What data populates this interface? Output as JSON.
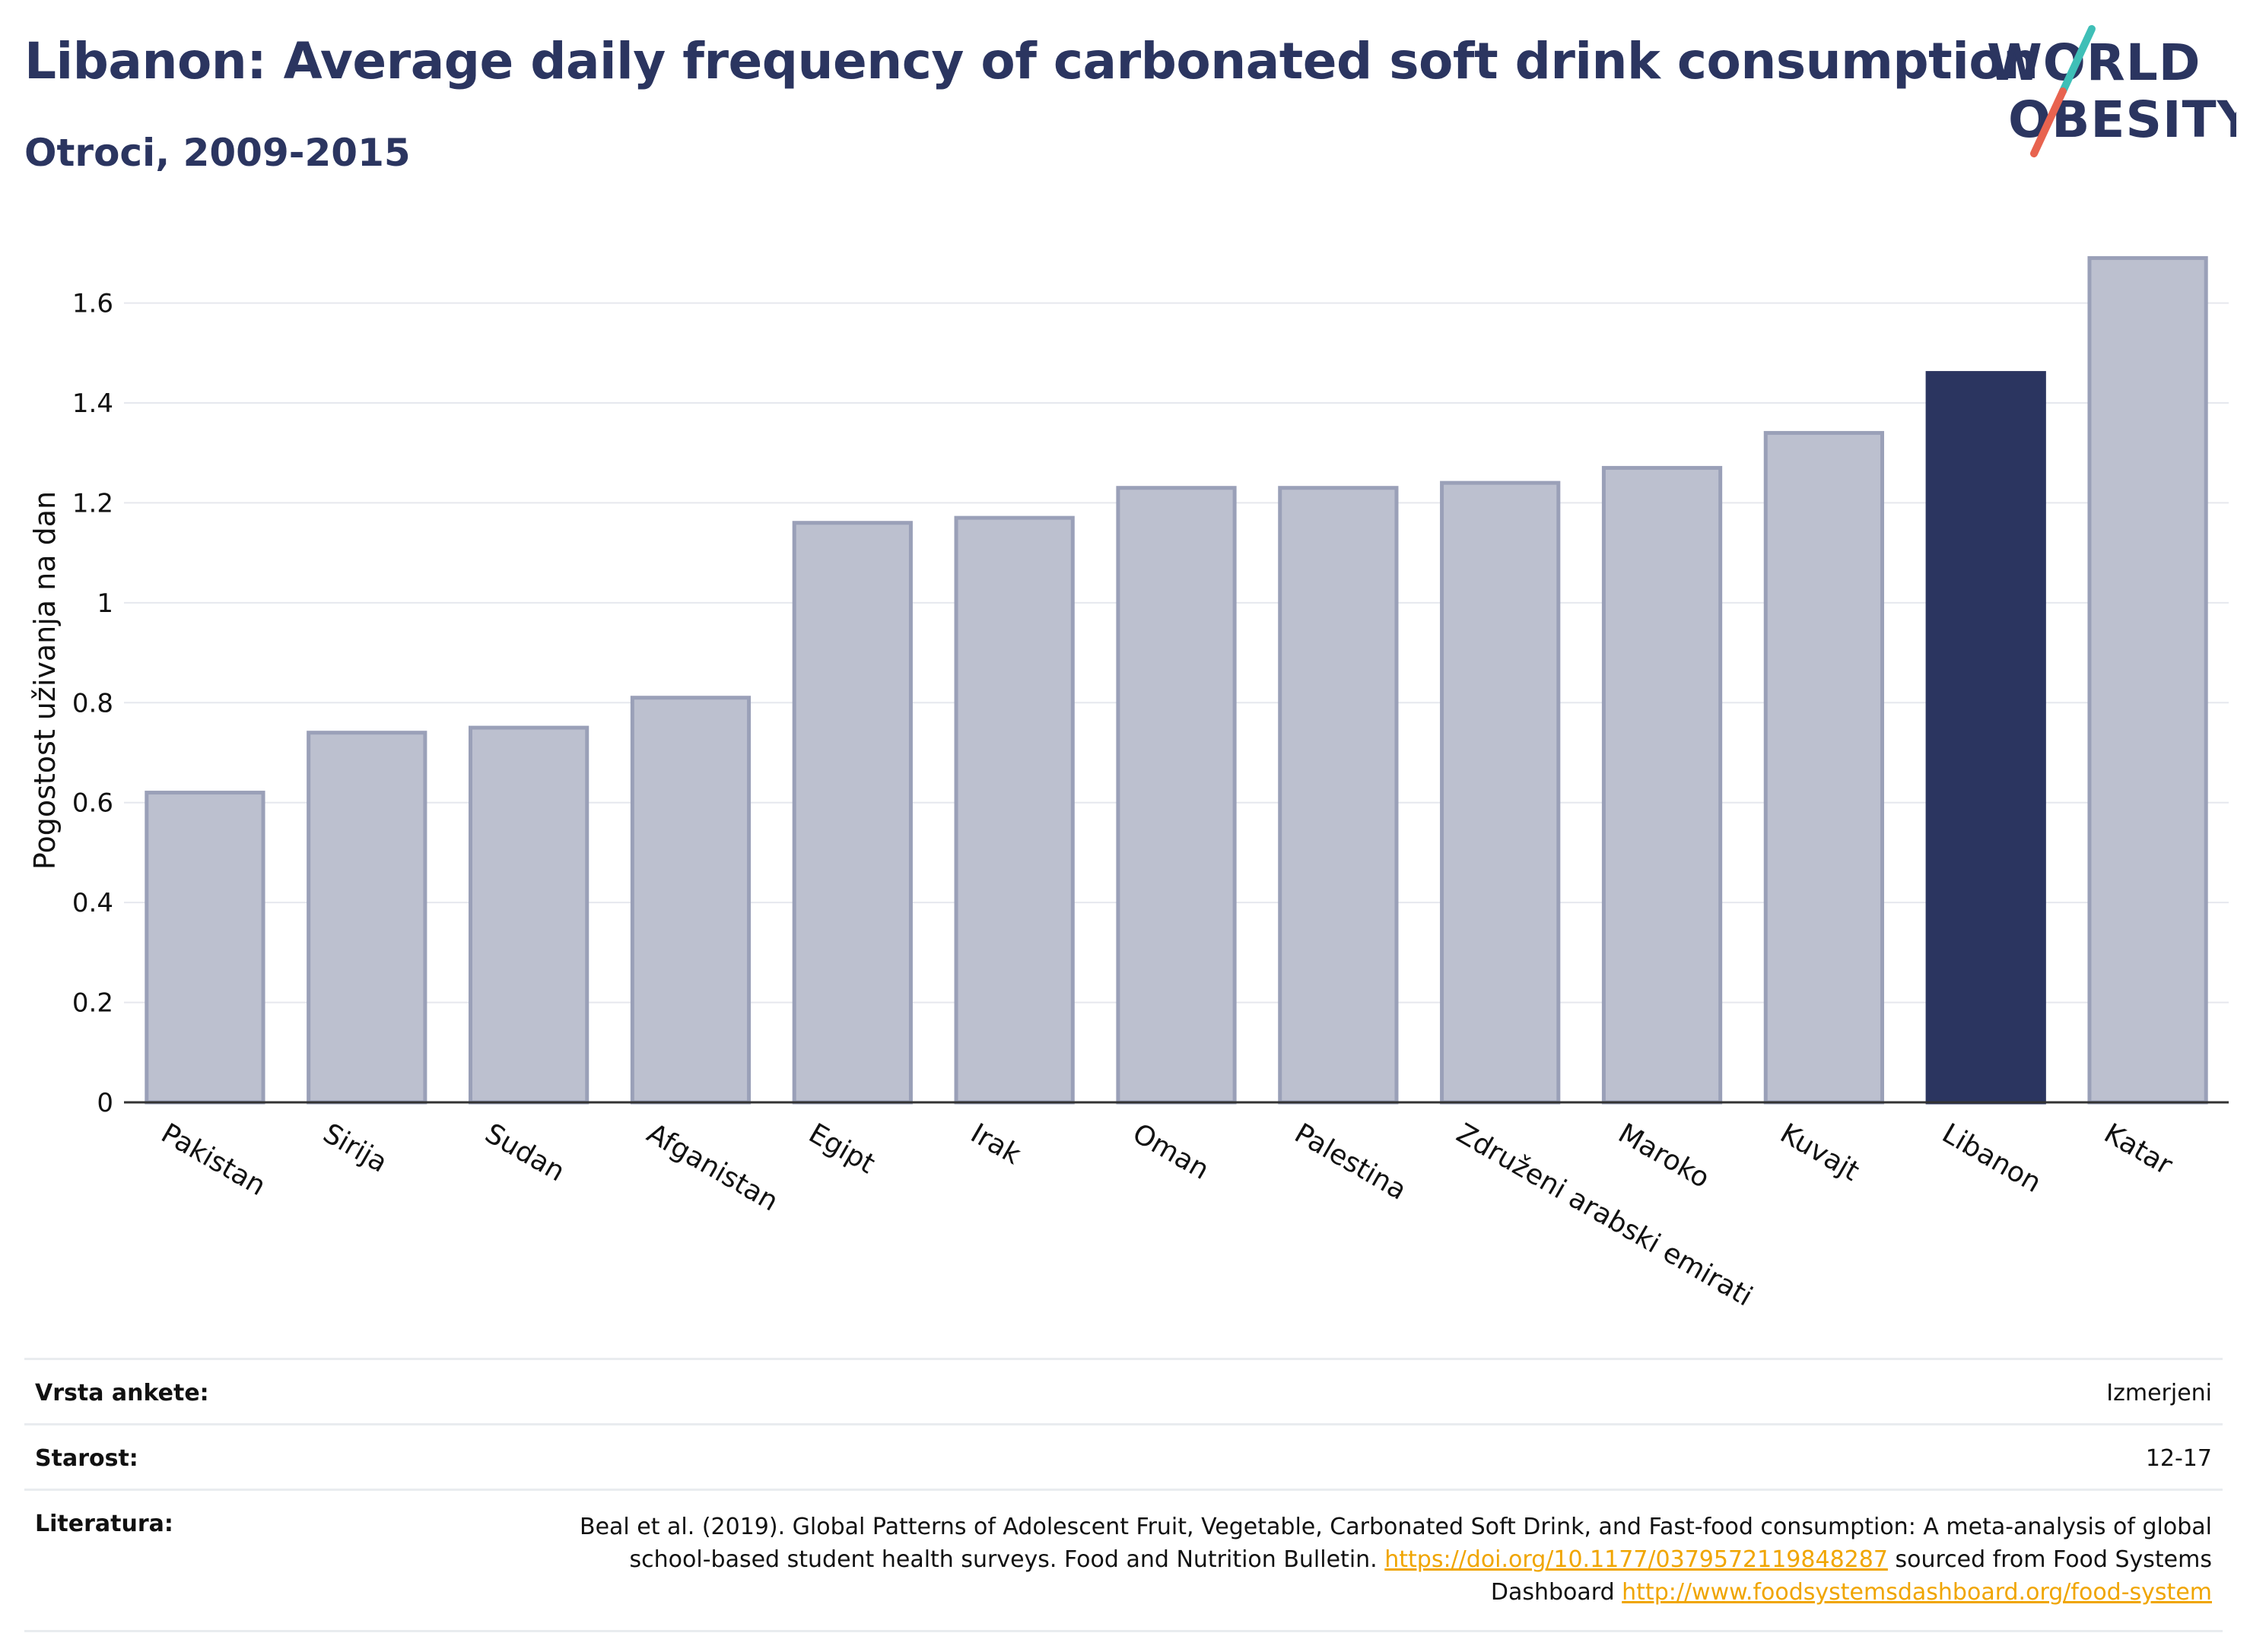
{
  "header": {
    "title": "Libanon: Average daily frequency of carbonated soft drink consumption",
    "subtitle": "Otroci, 2009-2015"
  },
  "logo": {
    "text_line1": "WORLD",
    "text_line2": "OBESITY",
    "colors": {
      "text": "#2b3560",
      "slash_teal": "#3fbfb7",
      "slash_red": "#e8634f"
    }
  },
  "colors": {
    "bar_default": "#bcc0cf",
    "bar_default_stroke": "#9aa0b8",
    "bar_highlight": "#2b3560",
    "grid": "#e6e8ee",
    "axis": "#333333"
  },
  "chart_data": {
    "type": "bar",
    "title": "Libanon: Average daily frequency of carbonated soft drink consumption",
    "ylabel": "Pogostost uživanja na dan",
    "xlabel": "",
    "categories": [
      "Pakistan",
      "Sirija",
      "Sudan",
      "Afganistan",
      "Egipt",
      "Irak",
      "Oman",
      "Palestina",
      "Združeni arabski emirati",
      "Maroko",
      "Kuvajt",
      "Libanon",
      "Katar"
    ],
    "values": [
      0.62,
      0.74,
      0.75,
      0.81,
      1.16,
      1.17,
      1.23,
      1.23,
      1.24,
      1.27,
      1.34,
      1.46,
      1.69
    ],
    "highlight": "Libanon",
    "ylim": [
      0,
      1.75
    ],
    "yticks": [
      0,
      0.2,
      0.4,
      0.6,
      0.8,
      1,
      1.2,
      1.4,
      1.6
    ],
    "ytick_labels": [
      "0",
      "0.2",
      "0.4",
      "0.6",
      "0.8",
      "1",
      "1.2",
      "1.4",
      "1.6"
    ],
    "grid": true,
    "legend": "none"
  },
  "footer": {
    "rows": [
      {
        "label": "Vrsta ankete:",
        "value": "Izmerjeni"
      },
      {
        "label": "Starost:",
        "value": "12-17"
      }
    ],
    "reference": {
      "label": "Literatura:",
      "text1": "Beal et al. (2019). Global Patterns of Adolescent Fruit, Vegetable, Carbonated Soft Drink, and Fast-food consumption: A meta-analysis of global school-based student health surveys. Food and Nutrition Bulletin. ",
      "link1": "https://doi.org/10.1177/0379572119848287",
      "text2": " sourced from Food Systems Dashboard ",
      "link2": "http://www.foodsystemsdashboard.org/food-system"
    }
  }
}
